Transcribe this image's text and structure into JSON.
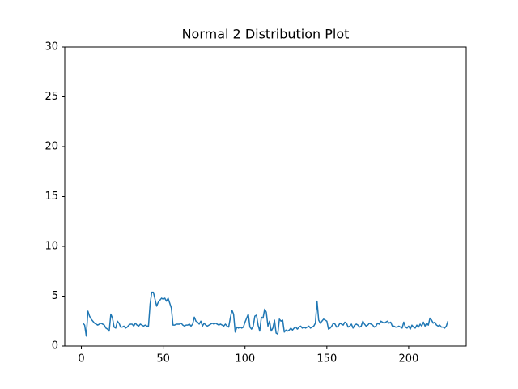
{
  "chart_data": {
    "type": "line",
    "title": "Normal 2 Distribution Plot",
    "x": [
      1,
      2,
      3,
      4,
      5,
      6,
      7,
      8,
      9,
      10,
      11,
      12,
      13,
      14,
      15,
      16,
      17,
      18,
      19,
      20,
      21,
      22,
      23,
      24,
      25,
      26,
      27,
      28,
      29,
      30,
      31,
      32,
      33,
      34,
      35,
      36,
      37,
      38,
      39,
      40,
      41,
      42,
      43,
      44,
      45,
      46,
      47,
      48,
      49,
      50,
      51,
      52,
      53,
      54,
      55,
      56,
      57,
      58,
      59,
      60,
      61,
      62,
      63,
      64,
      65,
      66,
      67,
      68,
      69,
      70,
      71,
      72,
      73,
      74,
      75,
      76,
      77,
      78,
      79,
      80,
      81,
      82,
      83,
      84,
      85,
      86,
      87,
      88,
      89,
      90,
      91,
      92,
      93,
      94,
      95,
      96,
      97,
      98,
      99,
      100,
      101,
      102,
      103,
      104,
      105,
      106,
      107,
      108,
      109,
      110,
      111,
      112,
      113,
      114,
      115,
      116,
      117,
      118,
      119,
      120,
      121,
      122,
      123,
      124,
      125,
      126,
      127,
      128,
      129,
      130,
      131,
      132,
      133,
      134,
      135,
      136,
      137,
      138,
      139,
      140,
      141,
      142,
      143,
      144,
      145,
      146,
      147,
      148,
      149,
      150,
      151,
      152,
      153,
      154,
      155,
      156,
      157,
      158,
      159,
      160,
      161,
      162,
      163,
      164,
      165,
      166,
      167,
      168,
      169,
      170,
      171,
      172,
      173,
      174,
      175,
      176,
      177,
      178,
      179,
      180,
      181,
      182,
      183,
      184,
      185,
      186,
      187,
      188,
      189,
      190,
      191,
      192,
      193,
      194,
      195,
      196,
      197,
      198,
      199,
      200,
      201,
      202,
      203,
      204,
      205,
      206,
      207,
      208,
      209,
      210,
      211,
      212,
      213,
      214,
      215,
      216,
      217,
      218,
      219,
      220,
      221,
      222,
      223,
      224
    ],
    "values": [
      2.3,
      2.1,
      1.0,
      3.5,
      3.0,
      2.7,
      2.5,
      2.3,
      2.2,
      2.1,
      2.2,
      2.3,
      2.2,
      2.1,
      1.8,
      1.7,
      1.5,
      3.2,
      2.8,
      1.9,
      1.8,
      2.5,
      2.3,
      1.9,
      1.9,
      2.0,
      1.8,
      1.9,
      2.1,
      2.2,
      2.2,
      2.0,
      2.3,
      2.1,
      2.0,
      2.2,
      2.1,
      2.0,
      2.1,
      2.0,
      2.0,
      4.2,
      5.4,
      5.4,
      4.7,
      4.0,
      4.4,
      4.6,
      4.8,
      4.7,
      4.8,
      4.5,
      4.8,
      4.3,
      3.8,
      2.1,
      2.1,
      2.2,
      2.2,
      2.2,
      2.3,
      2.1,
      2.0,
      2.1,
      2.1,
      2.2,
      2.0,
      2.2,
      2.9,
      2.5,
      2.4,
      2.2,
      2.5,
      2.0,
      2.3,
      2.1,
      2.0,
      2.1,
      2.2,
      2.3,
      2.2,
      2.3,
      2.2,
      2.1,
      2.2,
      2.1,
      2.0,
      2.2,
      2.0,
      1.9,
      2.8,
      3.6,
      3.2,
      1.4,
      1.9,
      1.8,
      1.9,
      1.8,
      1.9,
      2.4,
      2.8,
      3.2,
      1.9,
      1.7,
      2.0,
      3.0,
      3.1,
      2.1,
      1.5,
      2.9,
      2.8,
      3.7,
      3.4,
      2.0,
      2.5,
      1.5,
      1.8,
      2.6,
      1.3,
      1.2,
      2.7,
      2.5,
      2.6,
      1.4,
      1.6,
      1.5,
      1.6,
      1.8,
      1.6,
      1.8,
      1.9,
      1.7,
      1.9,
      2.0,
      1.8,
      1.9,
      1.8,
      1.9,
      2.0,
      1.8,
      1.9,
      2.0,
      2.3,
      4.5,
      2.6,
      2.3,
      2.5,
      2.7,
      2.6,
      2.5,
      1.7,
      1.8,
      2.0,
      2.3,
      2.2,
      1.9,
      2.0,
      2.3,
      2.2,
      2.1,
      2.4,
      2.3,
      1.9,
      2.0,
      2.2,
      1.8,
      2.1,
      2.2,
      2.1,
      1.9,
      2.0,
      2.5,
      2.2,
      2.0,
      2.1,
      2.3,
      2.2,
      2.1,
      1.9,
      2.0,
      2.3,
      2.2,
      2.5,
      2.4,
      2.3,
      2.4,
      2.5,
      2.3,
      2.4,
      2.0,
      2.0,
      1.9,
      1.9,
      2.0,
      1.9,
      1.8,
      2.4,
      1.9,
      1.8,
      2.0,
      1.7,
      2.1,
      1.9,
      1.8,
      2.1,
      1.9,
      2.2,
      2.0,
      2.4,
      2.0,
      2.3,
      2.1,
      2.8,
      2.6,
      2.3,
      2.4,
      2.1,
      2.0,
      2.1,
      1.9,
      1.9,
      1.8,
      2.0,
      2.5
    ],
    "color": "#1f77b4",
    "xlim": [
      -10.15,
      235.15
    ],
    "xticks": [
      0,
      50,
      100,
      150,
      200
    ],
    "ylim": [
      0,
      30
    ],
    "yticks": [
      0,
      5,
      10,
      15,
      20,
      25,
      30
    ]
  }
}
